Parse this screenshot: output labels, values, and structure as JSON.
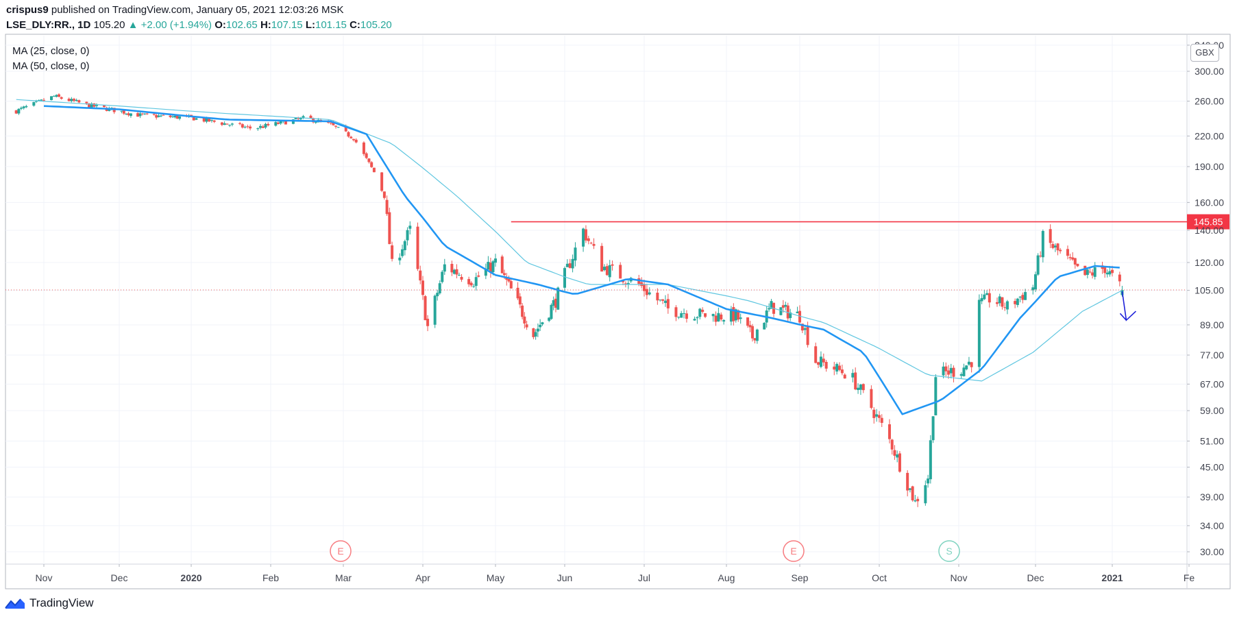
{
  "header": {
    "author": "crispus9",
    "published": " published on TradingView.com, January 05, 2021 12:03:26 MSK",
    "symbol": "LSE_DLY:RR., 1D",
    "last": "105.20",
    "change": "▲ +2.00 (+1.94%)",
    "o_label": "O:",
    "o_value": "102.65",
    "h_label": "H:",
    "h_value": "107.15",
    "l_label": "L:",
    "l_value": "101.15",
    "c_label": "C:",
    "c_value": "105.20"
  },
  "legend": {
    "ma1": "MA (25, close, 0)",
    "ma2": "MA (50, close, 0)"
  },
  "currency": "GBX",
  "brand": "TradingView",
  "colors": {
    "up": "#26a69a",
    "down": "#ef5350",
    "ma25": "#2196f3",
    "ma50": "#5fc6e0",
    "resistance": "#f23645",
    "arrow": "#1e22d9"
  },
  "chart_data": {
    "type": "candlestick",
    "title": "LSE_DLY:RR., 1D",
    "y_axis_ticks": [
      "340.00",
      "300.00",
      "260.00",
      "220.00",
      "190.00",
      "160.00",
      "140.00",
      "120.00",
      "105.00",
      "89.00",
      "77.00",
      "67.00",
      "59.00",
      "51.00",
      "45.00",
      "39.00",
      "34.00",
      "30.00"
    ],
    "y_scale": "log",
    "y_range": [
      28,
      345
    ],
    "x_axis_labels": [
      "Nov",
      "Dec",
      "2020",
      "Feb",
      "Mar",
      "Apr",
      "May",
      "Jun",
      "Jul",
      "Aug",
      "Sep",
      "Oct",
      "Nov",
      "Dec",
      "2021",
      "Fe"
    ],
    "resistance_level": 145.85,
    "resistance_label": "145.85",
    "current_price": 105.2,
    "events": [
      {
        "label": "E",
        "month": "Mar"
      },
      {
        "label": "E",
        "month": "Sep"
      },
      {
        "label": "S",
        "month": "Nov"
      }
    ],
    "close_keypoints": [
      [
        "2019-10-21",
        248
      ],
      [
        "2019-11-05",
        266
      ],
      [
        "2019-11-20",
        254
      ],
      [
        "2019-12-10",
        243
      ],
      [
        "2020-01-01",
        240
      ],
      [
        "2020-01-25",
        228
      ],
      [
        "2020-02-15",
        240
      ],
      [
        "2020-02-25",
        232
      ],
      [
        "2020-03-05",
        218
      ],
      [
        "2020-03-13",
        185
      ],
      [
        "2020-03-17",
        165
      ],
      [
        "2020-03-20",
        118
      ],
      [
        "2020-03-27",
        140
      ],
      [
        "2020-04-03",
        88
      ],
      [
        "2020-04-10",
        118
      ],
      [
        "2020-04-22",
        110
      ],
      [
        "2020-05-01",
        120
      ],
      [
        "2020-05-08",
        105
      ],
      [
        "2020-05-18",
        85
      ],
      [
        "2020-05-28",
        100
      ],
      [
        "2020-06-08",
        140
      ],
      [
        "2020-06-15",
        118
      ],
      [
        "2020-06-29",
        108
      ],
      [
        "2020-07-10",
        96
      ],
      [
        "2020-07-25",
        93
      ],
      [
        "2020-08-05",
        93
      ],
      [
        "2020-08-12",
        84
      ],
      [
        "2020-08-20",
        97
      ],
      [
        "2020-09-01",
        93
      ],
      [
        "2020-09-07",
        75
      ],
      [
        "2020-09-20",
        70
      ],
      [
        "2020-09-28",
        60
      ],
      [
        "2020-10-06",
        50
      ],
      [
        "2020-10-15",
        38
      ],
      [
        "2020-10-20",
        43
      ],
      [
        "2020-10-23",
        70
      ],
      [
        "2020-11-02",
        72
      ],
      [
        "2020-11-06",
        75
      ],
      [
        "2020-11-09",
        98
      ],
      [
        "2020-11-13",
        101
      ],
      [
        "2020-11-20",
        97
      ],
      [
        "2020-11-30",
        107
      ],
      [
        "2020-12-04",
        135
      ],
      [
        "2020-12-15",
        120
      ],
      [
        "2020-12-20",
        112
      ],
      [
        "2020-12-29",
        117
      ],
      [
        "2021-01-05",
        105.2
      ]
    ],
    "ma25_keypoints": [
      [
        "2019-11-01",
        254
      ],
      [
        "2019-12-01",
        250
      ],
      [
        "2020-01-15",
        238
      ],
      [
        "2020-02-25",
        236
      ],
      [
        "2020-03-10",
        222
      ],
      [
        "2020-03-25",
        165
      ],
      [
        "2020-04-10",
        130
      ],
      [
        "2020-05-01",
        113
      ],
      [
        "2020-05-20",
        108
      ],
      [
        "2020-06-05",
        103
      ],
      [
        "2020-06-25",
        111
      ],
      [
        "2020-07-10",
        108
      ],
      [
        "2020-08-01",
        96
      ],
      [
        "2020-08-20",
        92
      ],
      [
        "2020-09-10",
        87
      ],
      [
        "2020-09-25",
        78
      ],
      [
        "2020-10-10",
        58
      ],
      [
        "2020-10-25",
        62
      ],
      [
        "2020-11-10",
        72
      ],
      [
        "2020-11-25",
        92
      ],
      [
        "2020-12-10",
        112
      ],
      [
        "2020-12-25",
        118
      ],
      [
        "2021-01-05",
        117
      ]
    ],
    "ma50_keypoints": [
      [
        "2019-10-21",
        262
      ],
      [
        "2019-12-01",
        254
      ],
      [
        "2020-01-15",
        245
      ],
      [
        "2020-02-25",
        238
      ],
      [
        "2020-03-20",
        212
      ],
      [
        "2020-04-15",
        165
      ],
      [
        "2020-05-15",
        120
      ],
      [
        "2020-06-10",
        108
      ],
      [
        "2020-07-10",
        108
      ],
      [
        "2020-08-10",
        100
      ],
      [
        "2020-09-10",
        90
      ],
      [
        "2020-09-30",
        80
      ],
      [
        "2020-10-20",
        70
      ],
      [
        "2020-11-10",
        68
      ],
      [
        "2020-11-30",
        78
      ],
      [
        "2020-12-20",
        95
      ],
      [
        "2021-01-05",
        105
      ]
    ],
    "resistance_start": "2020-05-08"
  }
}
